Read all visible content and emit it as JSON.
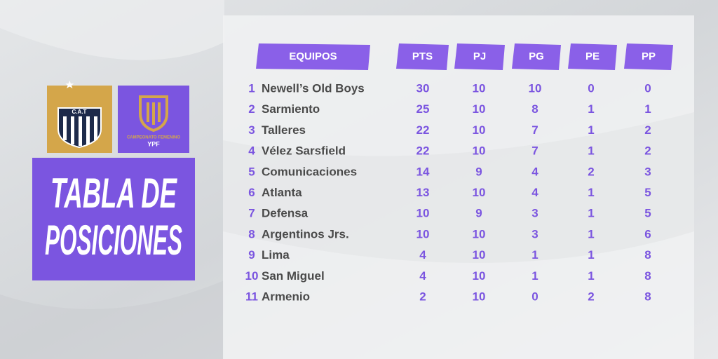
{
  "brand": {
    "club": "C.A.T",
    "league_line": "CAMPEONATO FEMENINO",
    "league_sponsor": "YPF"
  },
  "title": [
    "TABLA DE",
    "POSICIONES"
  ],
  "table": {
    "columns": [
      "EQUIPOS",
      "PTS",
      "PJ",
      "PG",
      "PE",
      "PP"
    ],
    "rows": [
      [
        1,
        "Newell’s Old Boys",
        30,
        10,
        10,
        0,
        0
      ],
      [
        2,
        "Sarmiento",
        25,
        10,
        8,
        1,
        1
      ],
      [
        3,
        "Talleres",
        22,
        10,
        7,
        1,
        2
      ],
      [
        4,
        "Vélez Sarsfield",
        22,
        10,
        7,
        1,
        2
      ],
      [
        5,
        "Comunicaciones",
        14,
        9,
        4,
        2,
        3
      ],
      [
        6,
        "Atlanta",
        13,
        10,
        4,
        1,
        5
      ],
      [
        7,
        "Defensa",
        10,
        9,
        3,
        1,
        5
      ],
      [
        8,
        "Argentinos Jrs.",
        10,
        10,
        3,
        1,
        6
      ],
      [
        9,
        "Lima",
        4,
        10,
        1,
        1,
        8
      ],
      [
        10,
        "San Miguel",
        4,
        10,
        1,
        1,
        8
      ],
      [
        11,
        "Armenio",
        2,
        10,
        0,
        2,
        8
      ]
    ]
  }
}
